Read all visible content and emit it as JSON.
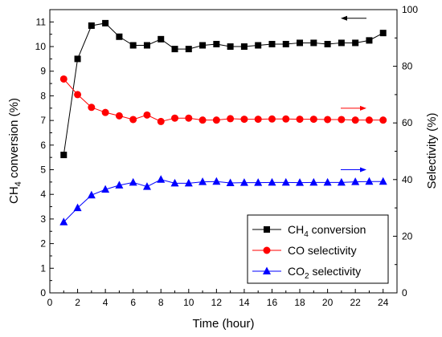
{
  "chart_data": {
    "type": "line",
    "title": "",
    "xlabel": "Time (hour)",
    "ylabel_left": {
      "main": "CH",
      "sub": "4",
      "rest": " conversion (%)"
    },
    "ylabel_right": "Selectivity (%)",
    "xlim": [
      0,
      25
    ],
    "ylim_left": [
      0,
      11.5
    ],
    "ylim_right": [
      0,
      100
    ],
    "x_ticks": [
      0,
      2,
      4,
      6,
      8,
      10,
      12,
      14,
      16,
      18,
      20,
      22,
      24
    ],
    "y_left_ticks": [
      0,
      1,
      2,
      3,
      4,
      5,
      6,
      7,
      8,
      9,
      10,
      11
    ],
    "y_right_ticks": [
      0,
      20,
      40,
      60,
      80,
      100
    ],
    "grid": false,
    "legend_position": "bottom-right",
    "x": [
      1,
      2,
      3,
      4,
      5,
      6,
      7,
      8,
      9,
      10,
      11,
      12,
      13,
      14,
      15,
      16,
      17,
      18,
      19,
      20,
      21,
      22,
      23,
      24
    ],
    "series": [
      {
        "name": {
          "main": "CH",
          "sub": "4",
          "rest": " conversion"
        },
        "axis": "left",
        "color": "#000000",
        "marker": "square",
        "arrow": "left",
        "values": [
          5.6,
          9.5,
          10.85,
          10.95,
          10.4,
          10.05,
          10.05,
          10.3,
          9.9,
          9.9,
          10.05,
          10.1,
          10.0,
          10.0,
          10.05,
          10.1,
          10.1,
          10.15,
          10.15,
          10.1,
          10.15,
          10.15,
          10.25,
          10.55
        ]
      },
      {
        "name": {
          "main": "CO  selectivity",
          "sub": "",
          "rest": ""
        },
        "axis": "right",
        "color": "#ff0000",
        "marker": "circle",
        "arrow": "right",
        "values": [
          75.5,
          70,
          65.5,
          63.7,
          62.5,
          61.2,
          62.8,
          60.5,
          61.7,
          61.7,
          61,
          61,
          61.5,
          61.3,
          61.3,
          61.4,
          61.4,
          61.3,
          61.3,
          61.2,
          61.2,
          61,
          61,
          61
        ]
      },
      {
        "name": {
          "main": "CO",
          "sub": "2",
          "rest": " selectivity"
        },
        "axis": "right",
        "color": "#0000ff",
        "marker": "triangle",
        "arrow": "right",
        "values": [
          25,
          30,
          34.5,
          36.5,
          38,
          39,
          37.5,
          40,
          38.7,
          38.7,
          39.2,
          39.3,
          38.8,
          38.9,
          38.9,
          39,
          39,
          38.9,
          39,
          39,
          39,
          39.2,
          39.3,
          39.3
        ]
      }
    ]
  }
}
